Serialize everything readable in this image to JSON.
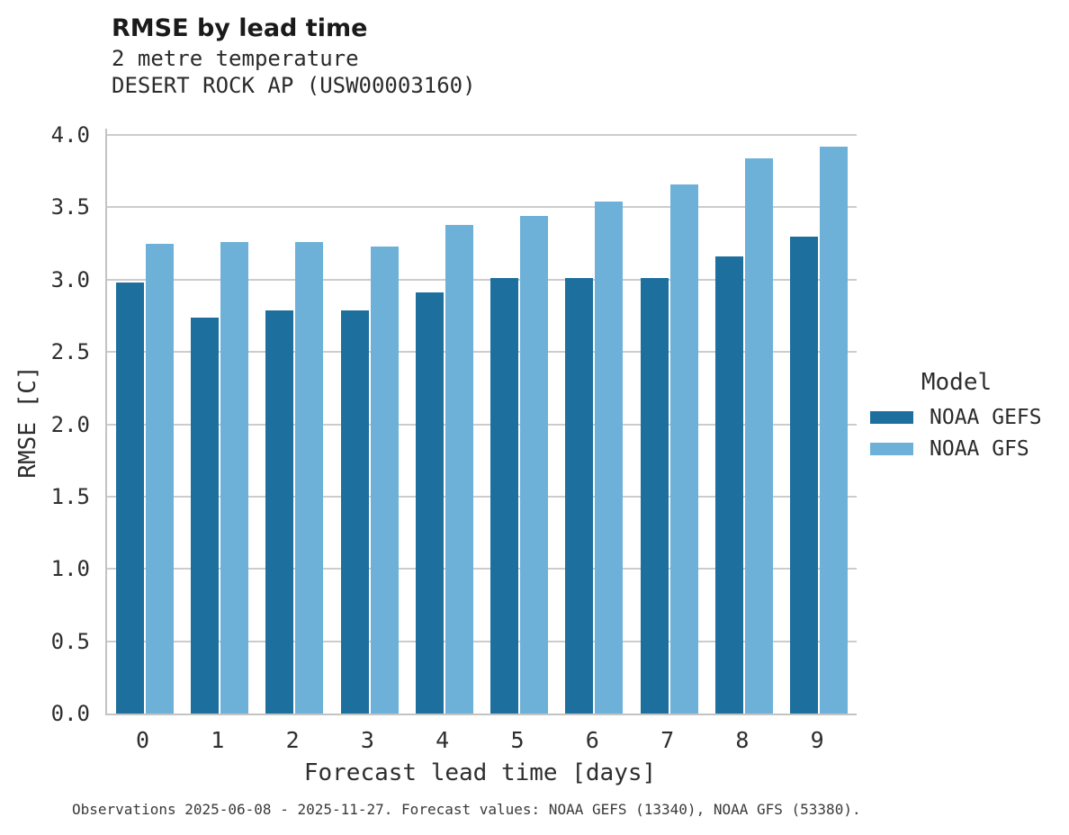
{
  "header": {
    "title": "RMSE by lead time",
    "subtitle_variable": "2 metre temperature",
    "subtitle_station": "DESERT ROCK AP (USW00003160)"
  },
  "legend": {
    "title": "Model"
  },
  "footer": {
    "caption": "Observations 2025-06-08 - 2025-11-27. Forecast values: NOAA GEFS (13340), NOAA GFS (53380)."
  },
  "colors": {
    "gefs": "#1d6f9e",
    "gfs": "#6db1d9",
    "gridline": "#cccccc",
    "spine": "#c3c3c3"
  },
  "chart_data": {
    "type": "bar",
    "title": "RMSE by lead time",
    "subtitle": [
      "2 metre temperature",
      "DESERT ROCK AP (USW00003160)"
    ],
    "xlabel": "Forecast lead time [days]",
    "ylabel": "RMSE [C]",
    "categories": [
      "0",
      "1",
      "2",
      "3",
      "4",
      "5",
      "6",
      "7",
      "8",
      "9"
    ],
    "series": [
      {
        "name": "NOAA GEFS",
        "color": "#1d6f9e",
        "values": [
          2.98,
          2.74,
          2.79,
          2.79,
          2.91,
          3.01,
          3.01,
          3.01,
          3.16,
          3.3
        ]
      },
      {
        "name": "NOAA GFS",
        "color": "#6db1d9",
        "values": [
          3.25,
          3.26,
          3.26,
          3.23,
          3.38,
          3.44,
          3.54,
          3.66,
          3.84,
          3.92
        ]
      }
    ],
    "ylim": [
      0.0,
      4.0
    ],
    "ytick_step": 0.5,
    "grid": "horizontal-only",
    "legend_position": "right",
    "legend_title": "Model"
  }
}
